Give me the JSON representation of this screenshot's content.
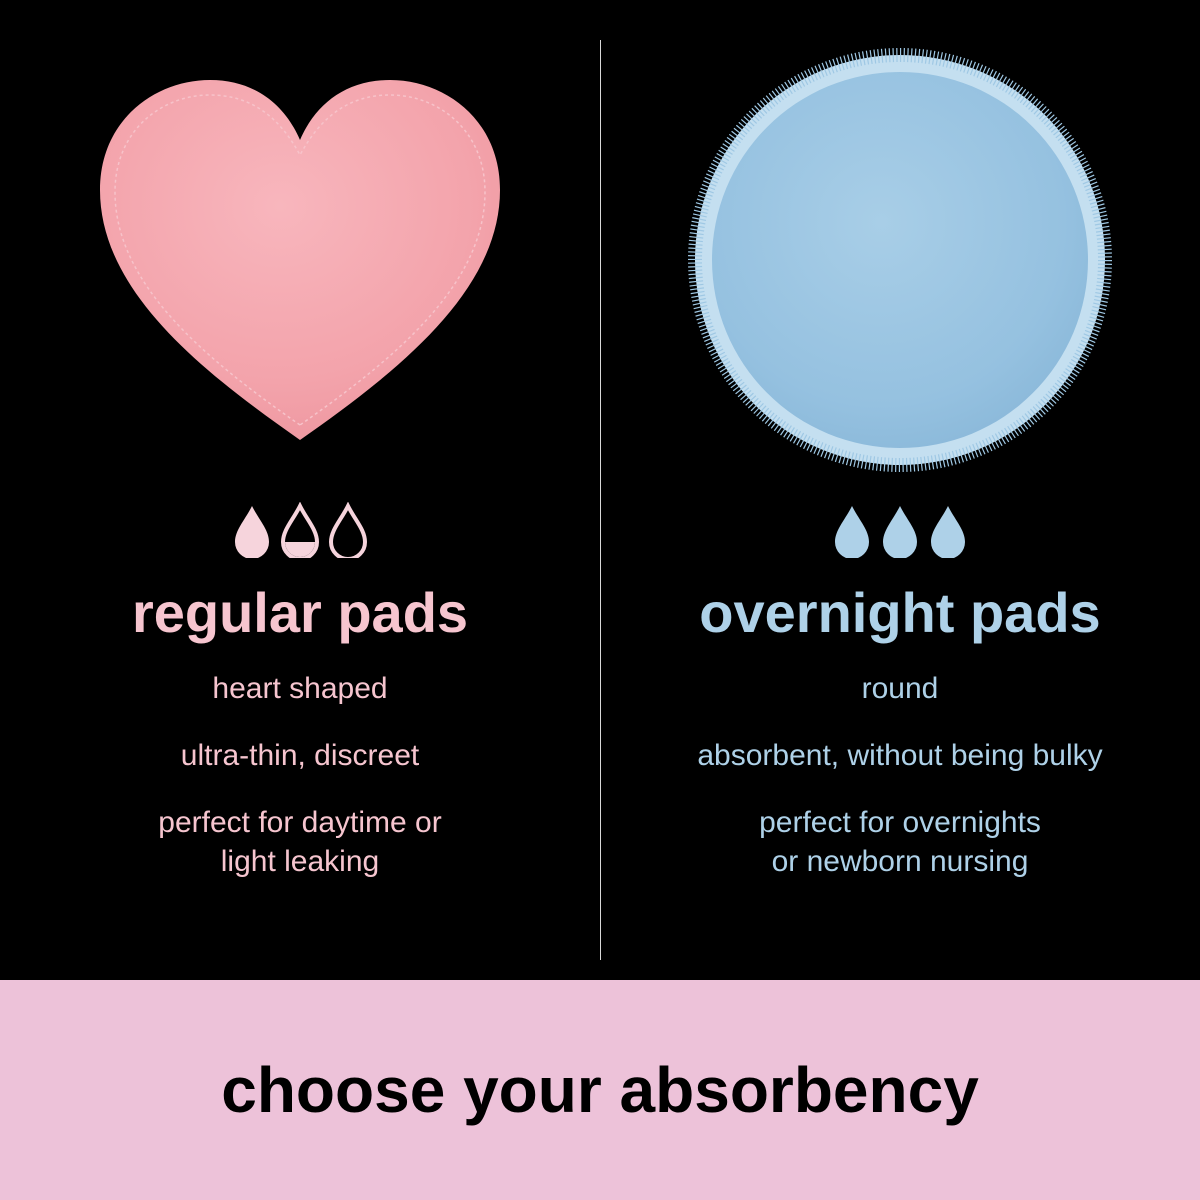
{
  "background_color": "#000000",
  "divider_color": "#ffffff",
  "left": {
    "shape": "heart",
    "shape_fill": "#f5a8b0",
    "shape_stitch": "#f7bfc6",
    "drops": {
      "fill_pattern": [
        "filled",
        "half",
        "outline"
      ],
      "color": "#f6d4dc"
    },
    "text_color": "#f6c5cf",
    "title": "regular pads",
    "features": [
      "heart shaped",
      "ultra-thin, discreet",
      "perfect for daytime or\nlight leaking"
    ]
  },
  "right": {
    "shape": "circle",
    "shape_fill": "#9cc6e3",
    "shape_edge": "#b8d9ee",
    "drops": {
      "fill_pattern": [
        "filled",
        "filled",
        "filled"
      ],
      "color": "#aed1e8"
    },
    "text_color": "#aed1e8",
    "title": "overnight pads",
    "features": [
      "round",
      "absorbent, without being bulky",
      "perfect for overnights\nor newborn nursing"
    ]
  },
  "footer": {
    "background_color": "#edc2d9",
    "text": "choose your absorbency",
    "text_color": "#000000",
    "fontsize": 64
  }
}
